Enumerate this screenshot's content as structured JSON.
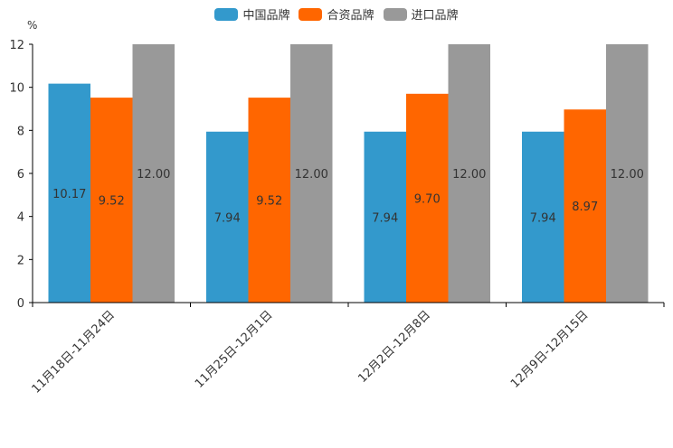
{
  "chart_data": {
    "type": "bar",
    "ylabel": "%",
    "ylim": [
      0,
      12
    ],
    "yticks": [
      0,
      2,
      4,
      6,
      8,
      10,
      12
    ],
    "categories": [
      "11月18日-11月24日",
      "11月25日-12月1日",
      "12月2日-12月8日",
      "12月9日-12月15日"
    ],
    "series": [
      {
        "name": "中国品牌",
        "color": "#3399cc",
        "values": [
          10.17,
          7.94,
          7.94,
          7.94
        ],
        "labels": [
          "10.17",
          "7.94",
          "7.94",
          "7.94"
        ]
      },
      {
        "name": "合资品牌",
        "color": "#ff6600",
        "values": [
          9.52,
          9.52,
          9.7,
          8.97
        ],
        "labels": [
          "9.52",
          "9.52",
          "9.70",
          "8.97"
        ]
      },
      {
        "name": "进口品牌",
        "color": "#999999",
        "values": [
          12.0,
          12.0,
          12.0,
          12.0
        ],
        "labels": [
          "12.00",
          "12.00",
          "12.00",
          "12.00"
        ]
      }
    ]
  }
}
